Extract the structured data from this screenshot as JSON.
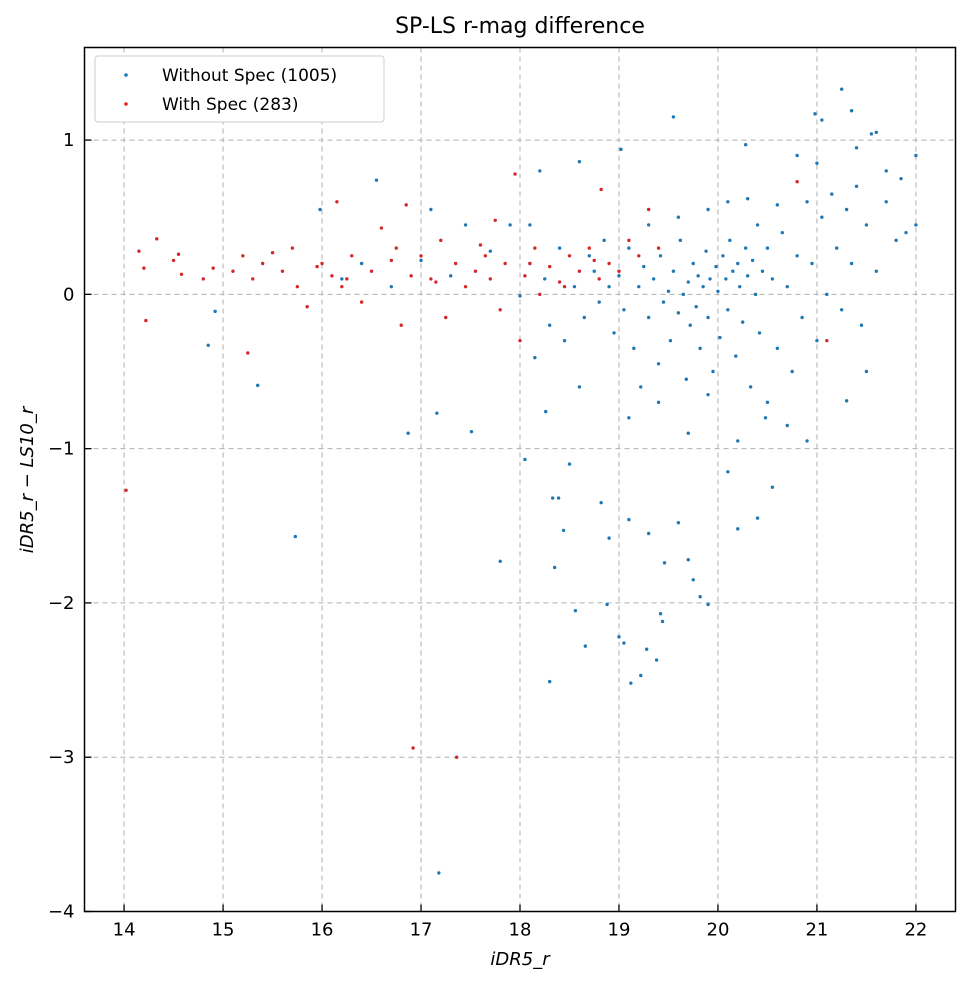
{
  "chart_data": {
    "type": "scatter",
    "title": "SP-LS r-mag difference",
    "xlabel": "iDR5_r",
    "ylabel": "iDR5_r − LS10_r",
    "xlim": [
      13.6,
      22.4
    ],
    "ylim": [
      -4.0,
      1.6
    ],
    "x_ticks": [
      14,
      15,
      16,
      17,
      18,
      19,
      20,
      21,
      22
    ],
    "y_ticks": [
      1,
      0,
      -1,
      -2,
      -3,
      -4
    ],
    "x_tick_labels": [
      "14",
      "15",
      "16",
      "17",
      "18",
      "19",
      "20",
      "21",
      "22"
    ],
    "y_tick_labels": [
      "1",
      "0",
      "−1",
      "−2",
      "−3",
      "−4"
    ],
    "grid": true,
    "legend_position": "top-left",
    "colors": {
      "without_spec": "#1f77b4",
      "with_spec": "#d62728",
      "grid": "#b0b0b0"
    },
    "series": [
      {
        "name": "Without Spec (1005)",
        "color": "#1f77b4",
        "points": [
          [
            14.85,
            -0.33
          ],
          [
            14.92,
            -0.11
          ],
          [
            15.35,
            -0.59
          ],
          [
            15.73,
            -1.57
          ],
          [
            15.98,
            0.55
          ],
          [
            16.55,
            0.74
          ],
          [
            16.87,
            -0.9
          ],
          [
            17.1,
            0.55
          ],
          [
            17.16,
            -0.77
          ],
          [
            17.18,
            -3.75
          ],
          [
            17.51,
            -0.89
          ],
          [
            17.8,
            -1.73
          ],
          [
            18.05,
            -1.07
          ],
          [
            18.2,
            0.8
          ],
          [
            18.26,
            -0.76
          ],
          [
            18.33,
            -1.32
          ],
          [
            18.35,
            -1.77
          ],
          [
            18.39,
            -1.32
          ],
          [
            18.44,
            -1.53
          ],
          [
            18.56,
            -2.05
          ],
          [
            18.6,
            0.86
          ],
          [
            18.66,
            -2.28
          ],
          [
            18.82,
            -1.35
          ],
          [
            18.88,
            -2.01
          ],
          [
            19.0,
            -2.22
          ],
          [
            19.05,
            -2.26
          ],
          [
            19.12,
            -2.52
          ],
          [
            19.22,
            -2.47
          ],
          [
            19.28,
            -2.3
          ],
          [
            19.38,
            -2.37
          ],
          [
            19.42,
            -2.07
          ],
          [
            19.44,
            -2.12
          ],
          [
            19.46,
            -1.74
          ],
          [
            19.55,
            1.15
          ],
          [
            19.75,
            -1.85
          ],
          [
            19.82,
            -1.96
          ],
          [
            19.9,
            -2.01
          ],
          [
            20.28,
            0.97
          ],
          [
            20.98,
            1.17
          ],
          [
            21.05,
            1.13
          ],
          [
            21.25,
            1.33
          ],
          [
            21.35,
            1.19
          ],
          [
            21.55,
            1.04
          ],
          [
            21.6,
            1.05
          ],
          [
            22.0,
            0.9
          ],
          [
            18.3,
            -2.51
          ],
          [
            18.5,
            -1.1
          ],
          [
            18.9,
            -1.58
          ],
          [
            19.1,
            -1.46
          ],
          [
            19.3,
            -1.55
          ],
          [
            19.6,
            -1.48
          ],
          [
            19.7,
            -1.72
          ],
          [
            20.1,
            -1.15
          ],
          [
            20.2,
            -1.52
          ],
          [
            20.4,
            -1.45
          ],
          [
            20.55,
            -1.25
          ],
          [
            20.9,
            -0.95
          ],
          [
            21.3,
            -0.69
          ],
          [
            21.5,
            -0.5
          ],
          [
            21.9,
            0.4
          ],
          [
            16.2,
            0.1
          ],
          [
            16.4,
            0.2
          ],
          [
            16.7,
            0.05
          ],
          [
            17.0,
            0.22
          ],
          [
            17.3,
            0.12
          ],
          [
            17.45,
            0.45
          ],
          [
            17.7,
            0.28
          ],
          [
            17.9,
            0.45
          ],
          [
            18.0,
            -0.01
          ],
          [
            18.1,
            0.2
          ],
          [
            18.15,
            -0.41
          ],
          [
            18.25,
            0.1
          ],
          [
            18.4,
            0.3
          ],
          [
            18.45,
            -0.3
          ],
          [
            18.55,
            0.05
          ],
          [
            18.65,
            -0.15
          ],
          [
            18.7,
            0.25
          ],
          [
            18.75,
            0.15
          ],
          [
            18.8,
            -0.05
          ],
          [
            18.85,
            0.35
          ],
          [
            18.9,
            0.05
          ],
          [
            18.95,
            -0.25
          ],
          [
            19.0,
            0.12
          ],
          [
            19.02,
            0.94
          ],
          [
            19.05,
            -0.1
          ],
          [
            19.1,
            0.3
          ],
          [
            19.15,
            -0.35
          ],
          [
            19.2,
            0.05
          ],
          [
            19.22,
            -0.6
          ],
          [
            19.25,
            0.18
          ],
          [
            19.3,
            -0.15
          ],
          [
            19.35,
            0.1
          ],
          [
            19.4,
            -0.45
          ],
          [
            19.42,
            0.25
          ],
          [
            19.45,
            -0.05
          ],
          [
            19.5,
            0.02
          ],
          [
            19.52,
            -0.3
          ],
          [
            19.55,
            0.15
          ],
          [
            19.6,
            -0.12
          ],
          [
            19.62,
            0.35
          ],
          [
            19.65,
            0.0
          ],
          [
            19.68,
            -0.55
          ],
          [
            19.7,
            0.08
          ],
          [
            19.72,
            -0.2
          ],
          [
            19.75,
            0.2
          ],
          [
            19.78,
            -0.08
          ],
          [
            19.8,
            0.12
          ],
          [
            19.82,
            -0.35
          ],
          [
            19.85,
            0.05
          ],
          [
            19.88,
            0.28
          ],
          [
            19.9,
            -0.15
          ],
          [
            19.92,
            0.1
          ],
          [
            19.95,
            -0.5
          ],
          [
            19.98,
            0.18
          ],
          [
            20.0,
            0.02
          ],
          [
            20.02,
            -0.28
          ],
          [
            20.05,
            0.25
          ],
          [
            20.08,
            0.1
          ],
          [
            20.1,
            -0.1
          ],
          [
            20.12,
            0.35
          ],
          [
            20.15,
            0.15
          ],
          [
            20.18,
            -0.4
          ],
          [
            20.2,
            0.2
          ],
          [
            20.22,
            0.05
          ],
          [
            20.25,
            -0.18
          ],
          [
            20.28,
            0.3
          ],
          [
            20.3,
            0.12
          ],
          [
            20.33,
            -0.6
          ],
          [
            20.35,
            0.22
          ],
          [
            20.38,
            0.0
          ],
          [
            20.4,
            0.45
          ],
          [
            20.42,
            -0.25
          ],
          [
            20.45,
            0.15
          ],
          [
            20.48,
            -0.8
          ],
          [
            20.5,
            0.3
          ],
          [
            20.55,
            0.1
          ],
          [
            20.6,
            -0.35
          ],
          [
            20.65,
            0.4
          ],
          [
            20.7,
            0.05
          ],
          [
            20.75,
            -0.5
          ],
          [
            20.8,
            0.25
          ],
          [
            20.85,
            -0.15
          ],
          [
            20.9,
            0.6
          ],
          [
            20.95,
            0.2
          ],
          [
            21.0,
            -0.3
          ],
          [
            21.05,
            0.5
          ],
          [
            21.1,
            0.0
          ],
          [
            21.15,
            0.65
          ],
          [
            21.2,
            0.3
          ],
          [
            21.25,
            -0.1
          ],
          [
            21.3,
            0.55
          ],
          [
            21.35,
            0.2
          ],
          [
            21.4,
            0.7
          ],
          [
            21.45,
            -0.2
          ],
          [
            21.5,
            0.45
          ],
          [
            21.6,
            0.15
          ],
          [
            21.7,
            0.6
          ],
          [
            21.8,
            0.35
          ],
          [
            21.85,
            0.75
          ],
          [
            22.0,
            0.45
          ],
          [
            19.3,
            0.45
          ],
          [
            19.6,
            0.5
          ],
          [
            19.9,
            0.55
          ],
          [
            20.1,
            0.6
          ],
          [
            20.3,
            0.62
          ],
          [
            20.6,
            0.58
          ],
          [
            20.8,
            0.9
          ],
          [
            21.0,
            0.85
          ],
          [
            21.4,
            0.95
          ],
          [
            21.7,
            0.8
          ],
          [
            19.4,
            -0.7
          ],
          [
            19.7,
            -0.9
          ],
          [
            19.9,
            -0.65
          ],
          [
            20.2,
            -0.95
          ],
          [
            20.5,
            -0.7
          ],
          [
            20.7,
            -0.85
          ],
          [
            19.1,
            -0.8
          ],
          [
            18.6,
            -0.6
          ],
          [
            18.3,
            -0.2
          ],
          [
            18.1,
            0.45
          ]
        ]
      },
      {
        "name": "With Spec (283)",
        "color": "#d62728",
        "points": [
          [
            14.02,
            -1.27
          ],
          [
            14.15,
            0.28
          ],
          [
            14.2,
            0.17
          ],
          [
            14.22,
            -0.17
          ],
          [
            14.33,
            0.36
          ],
          [
            14.5,
            0.22
          ],
          [
            14.55,
            0.26
          ],
          [
            14.58,
            0.13
          ],
          [
            14.8,
            0.1
          ],
          [
            14.9,
            0.17
          ],
          [
            15.1,
            0.15
          ],
          [
            15.2,
            0.25
          ],
          [
            15.25,
            -0.38
          ],
          [
            15.3,
            0.1
          ],
          [
            15.4,
            0.2
          ],
          [
            15.5,
            0.27
          ],
          [
            15.6,
            0.15
          ],
          [
            15.7,
            0.3
          ],
          [
            15.75,
            0.05
          ],
          [
            15.85,
            -0.08
          ],
          [
            16.0,
            0.2
          ],
          [
            16.1,
            0.12
          ],
          [
            16.15,
            0.6
          ],
          [
            16.2,
            0.05
          ],
          [
            16.3,
            0.25
          ],
          [
            16.4,
            -0.05
          ],
          [
            16.5,
            0.15
          ],
          [
            16.6,
            0.43
          ],
          [
            16.7,
            0.22
          ],
          [
            16.8,
            -0.2
          ],
          [
            16.85,
            0.58
          ],
          [
            16.9,
            0.12
          ],
          [
            16.92,
            -2.94
          ],
          [
            17.0,
            0.25
          ],
          [
            17.1,
            0.1
          ],
          [
            17.2,
            0.35
          ],
          [
            17.25,
            -0.15
          ],
          [
            17.35,
            0.2
          ],
          [
            17.36,
            -3.0
          ],
          [
            17.45,
            0.05
          ],
          [
            17.55,
            0.15
          ],
          [
            17.6,
            0.32
          ],
          [
            17.7,
            0.1
          ],
          [
            17.75,
            0.48
          ],
          [
            17.8,
            -0.1
          ],
          [
            17.85,
            0.2
          ],
          [
            17.95,
            0.78
          ],
          [
            18.0,
            -0.3
          ],
          [
            18.05,
            0.12
          ],
          [
            18.15,
            0.3
          ],
          [
            18.2,
            0.0
          ],
          [
            18.3,
            0.18
          ],
          [
            18.4,
            0.08
          ],
          [
            18.5,
            0.25
          ],
          [
            18.6,
            0.15
          ],
          [
            18.7,
            0.3
          ],
          [
            18.8,
            0.1
          ],
          [
            18.82,
            0.68
          ],
          [
            18.9,
            0.2
          ],
          [
            19.0,
            0.15
          ],
          [
            19.1,
            0.35
          ],
          [
            19.2,
            0.25
          ],
          [
            19.3,
            0.55
          ],
          [
            19.4,
            0.3
          ],
          [
            20.8,
            0.73
          ],
          [
            21.1,
            -0.3
          ],
          [
            15.95,
            0.18
          ],
          [
            16.25,
            0.1
          ],
          [
            16.75,
            0.3
          ],
          [
            17.15,
            0.08
          ],
          [
            17.65,
            0.25
          ],
          [
            18.1,
            0.2
          ],
          [
            18.45,
            0.05
          ],
          [
            18.75,
            0.22
          ]
        ]
      }
    ]
  }
}
